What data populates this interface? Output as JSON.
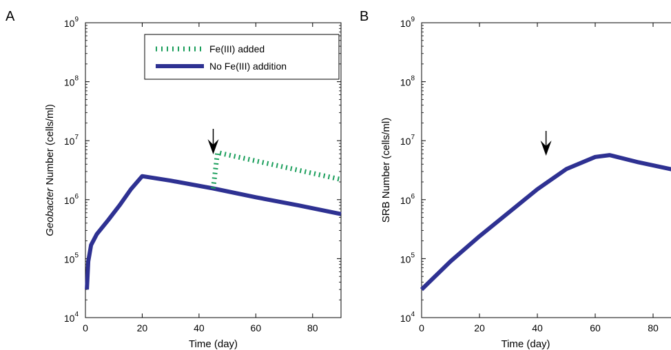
{
  "panels": [
    {
      "letter": "A"
    },
    {
      "letter": "B"
    }
  ],
  "legend": {
    "entries": [
      {
        "label": "Fe(III) added",
        "color": "#1a9e5b",
        "style": "dotted"
      },
      {
        "label": "No Fe(III) addition",
        "color": "#2e3192",
        "style": "solid"
      }
    ]
  },
  "chart_data": [
    {
      "type": "line",
      "panel": "A",
      "xlabel": "Time (day)",
      "ylabel_italic": "Geobacter",
      "ylabel_rest": " Number (cells/ml)",
      "xlim": [
        0,
        90
      ],
      "ylim": [
        10000,
        1000000000
      ],
      "yscale": "log",
      "xticks": [
        0,
        20,
        40,
        60,
        80
      ],
      "yticks": [
        {
          "value": 10000,
          "base": "10",
          "exp": "4"
        },
        {
          "value": 100000,
          "base": "10",
          "exp": "5"
        },
        {
          "value": 1000000,
          "base": "10",
          "exp": "6"
        },
        {
          "value": 10000000,
          "base": "10",
          "exp": "7"
        },
        {
          "value": 100000000,
          "base": "10",
          "exp": "8"
        },
        {
          "value": 1000000000,
          "base": "10",
          "exp": "9"
        }
      ],
      "arrow_x": 45,
      "series": [
        {
          "name": "No Fe(III) addition",
          "color": "#2e3192",
          "x": [
            0.5,
            1,
            2,
            4,
            8,
            12,
            16,
            20,
            30,
            45,
            60,
            75,
            90
          ],
          "y": [
            30000,
            90000,
            170000,
            260000,
            450000,
            800000,
            1500000,
            2500000,
            2100000,
            1550000,
            1100000,
            800000,
            570000
          ]
        },
        {
          "name": "Fe(III) added",
          "color": "#1a9e5b",
          "x": [
            45,
            46.5,
            90
          ],
          "y": [
            1550000,
            6300000,
            2200000
          ]
        }
      ]
    },
    {
      "type": "line",
      "panel": "B",
      "xlabel": "Time (day)",
      "ylabel": "SRB Number (cells/ml)",
      "xlim": [
        0,
        90
      ],
      "ylim": [
        10000,
        1000000000
      ],
      "yscale": "log",
      "xticks": [
        0,
        20,
        40,
        60,
        80
      ],
      "yticks": [
        {
          "value": 10000,
          "base": "10",
          "exp": "4"
        },
        {
          "value": 100000,
          "base": "10",
          "exp": "5"
        },
        {
          "value": 1000000,
          "base": "10",
          "exp": "6"
        },
        {
          "value": 10000000,
          "base": "10",
          "exp": "7"
        },
        {
          "value": 100000000,
          "base": "10",
          "exp": "8"
        },
        {
          "value": 1000000000,
          "base": "10",
          "exp": "9"
        }
      ],
      "arrow_x": 43,
      "series": [
        {
          "name": "",
          "color": "#2e3192",
          "x": [
            0,
            10,
            20,
            30,
            40,
            50,
            60,
            65,
            75,
            90
          ],
          "y": [
            30000,
            90000,
            240000,
            600000,
            1500000,
            3300000,
            5300000,
            5700000,
            4300000,
            3000000
          ]
        }
      ]
    }
  ]
}
